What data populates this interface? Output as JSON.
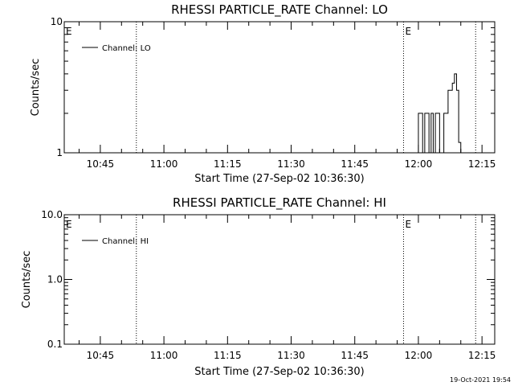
{
  "chart_data": [
    {
      "type": "line",
      "title": "RHESSI PARTICLE_RATE Channel: LO",
      "xlabel": "Start Time (27-Sep-02 10:36:30)",
      "ylabel": "Counts/sec",
      "yscale": "log",
      "ylim": [
        1,
        10
      ],
      "yticks": [
        "1",
        "10"
      ],
      "xlim": [
        "10:36:30",
        "12:18:00"
      ],
      "xticks": [
        "10:45",
        "11:00",
        "11:15",
        "11:30",
        "11:45",
        "12:00",
        "12:15"
      ],
      "vlines": [
        "10:53:30",
        "11:56:30",
        "12:13:30"
      ],
      "markers": [
        {
          "text": "E",
          "x": "10:36:30"
        },
        {
          "text": "E",
          "x": "11:56:30"
        }
      ],
      "legend": {
        "position": "top-left",
        "entries": [
          "Channel: LO"
        ]
      },
      "series": [
        {
          "name": "Channel: LO",
          "step": true,
          "x": [
            "11:59:30",
            "12:00:00",
            "12:00:30",
            "12:01:00",
            "12:01:30",
            "12:02:00",
            "12:02:30",
            "12:03:00",
            "12:03:30",
            "12:04:00",
            "12:04:30",
            "12:05:00",
            "12:05:30",
            "12:06:00",
            "12:06:30",
            "12:07:00",
            "12:07:30",
            "12:08:00",
            "12:08:30",
            "12:09:00",
            "12:09:30",
            "12:10:00"
          ],
          "y": [
            1,
            2,
            2,
            1,
            2,
            2,
            1,
            2,
            1,
            2,
            2,
            1,
            1,
            2,
            2,
            3,
            3,
            3.4,
            4,
            3,
            1.2,
            1
          ]
        }
      ]
    },
    {
      "type": "line",
      "title": "RHESSI PARTICLE_RATE Channel: HI",
      "xlabel": "Start Time (27-Sep-02 10:36:30)",
      "ylabel": "Counts/sec",
      "yscale": "log",
      "ylim": [
        0.1,
        10
      ],
      "yticks": [
        "0.1",
        "1.0",
        "10.0"
      ],
      "xlim": [
        "10:36:30",
        "12:18:00"
      ],
      "xticks": [
        "10:45",
        "11:00",
        "11:15",
        "11:30",
        "11:45",
        "12:00",
        "12:15"
      ],
      "vlines": [
        "10:53:30",
        "11:56:30",
        "12:13:30"
      ],
      "markers": [
        {
          "text": "E",
          "x": "10:36:30"
        },
        {
          "text": "E",
          "x": "11:56:30"
        }
      ],
      "legend": {
        "position": "top-left",
        "entries": [
          "Channel: HI"
        ]
      },
      "series": [
        {
          "name": "Channel: HI",
          "step": true,
          "x": [],
          "y": []
        }
      ]
    }
  ],
  "footer": {
    "timestamp": "19-Oct-2021 19:54"
  }
}
